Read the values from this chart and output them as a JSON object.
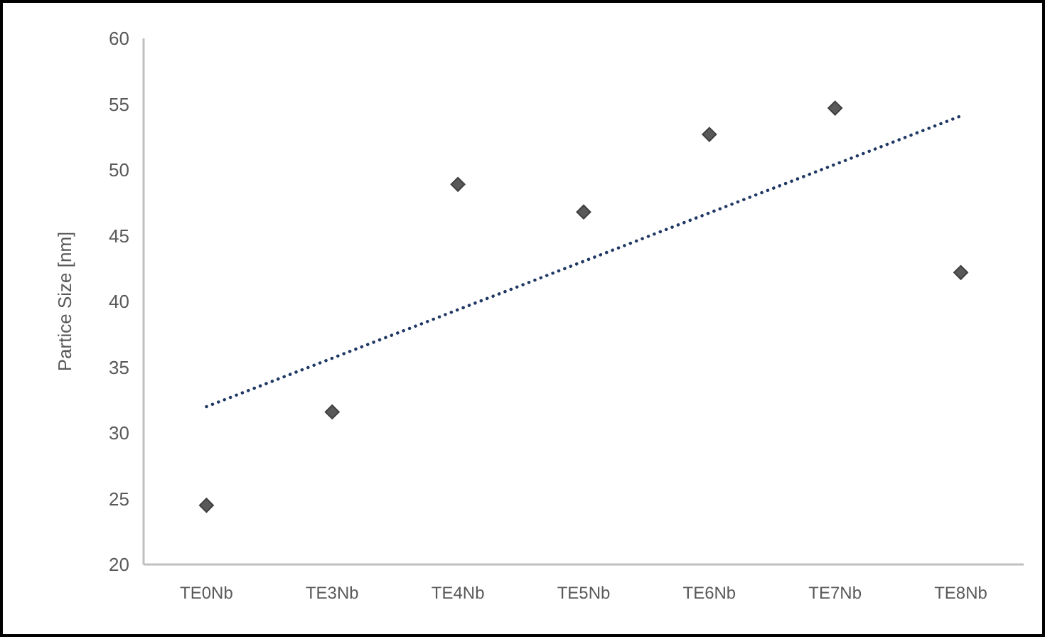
{
  "chart_data": {
    "type": "scatter",
    "ylabel": "Partice Size [nm]",
    "categories": [
      "TE0Nb",
      "TE3Nb",
      "TE4Nb",
      "TE5Nb",
      "TE6Nb",
      "TE7Nb",
      "TE8Nb"
    ],
    "series": [
      {
        "color": "#595959",
        "marker": "diamond",
        "values": [
          24.5,
          31.6,
          48.9,
          46.8,
          52.7,
          54.7,
          42.2
        ]
      },
      {
        "type": "line",
        "color": "#1f3864",
        "line_style": "dotted",
        "x": [
          "TE0Nb",
          "TE8Nb"
        ],
        "values": [
          32.0,
          54.1
        ]
      }
    ],
    "ylim": [
      20,
      60
    ],
    "yticks": [
      20,
      25,
      30,
      35,
      40,
      45,
      50,
      55,
      60
    ]
  }
}
